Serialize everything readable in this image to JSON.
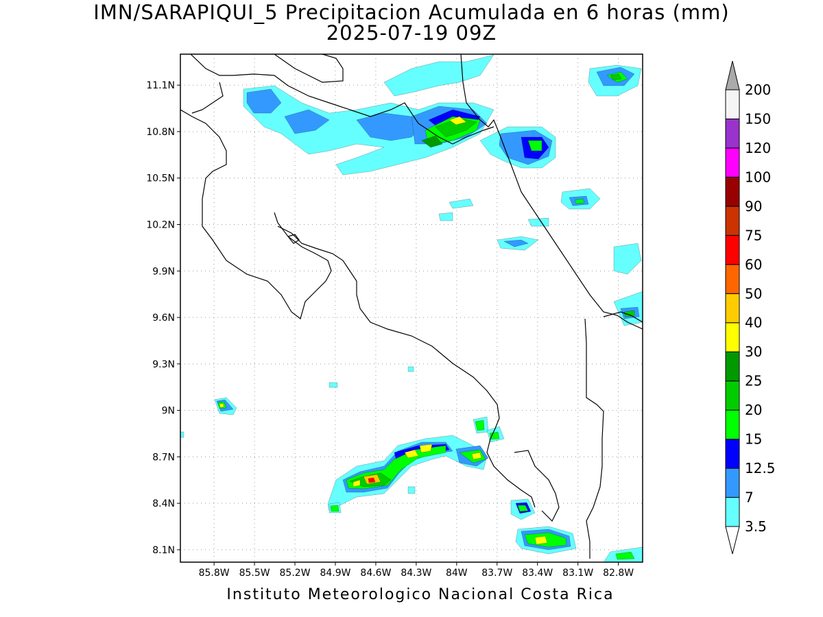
{
  "title": {
    "line1": "IMN/SARAPIQUI_5 Precipitacion Acumulada en 6 horas (mm)",
    "line2": "2025-07-19 09Z"
  },
  "footer": "Instituto Meteorologico Nacional Costa Rica",
  "map": {
    "lon_range": [
      -86.05,
      -82.62
    ],
    "lat_range": [
      8.02,
      11.3
    ],
    "lat_labels": [
      "11.1N",
      "10.8N",
      "10.5N",
      "10.2N",
      "9.9N",
      "9.6N",
      "9.3N",
      "9N",
      "8.7N",
      "8.4N",
      "8.1N"
    ],
    "lat_values": [
      11.1,
      10.8,
      10.5,
      10.2,
      9.9,
      9.6,
      9.3,
      9.0,
      8.7,
      8.4,
      8.1
    ],
    "lon_labels": [
      "85.8W",
      "85.5W",
      "85.2W",
      "84.9W",
      "84.6W",
      "84.3W",
      "84W",
      "83.7W",
      "83.4W",
      "83.1W",
      "82.8W"
    ],
    "lon_values": [
      -85.8,
      -85.5,
      -85.2,
      -84.9,
      -84.6,
      -84.3,
      -84.0,
      -83.7,
      -83.4,
      -83.1,
      -82.8
    ],
    "grid": "dotted"
  },
  "colorbar": {
    "unit": "mm",
    "levels": [
      "3.5",
      "7",
      "12.5",
      "15",
      "20",
      "25",
      "30",
      "40",
      "50",
      "60",
      "75",
      "90",
      "100",
      "120",
      "150",
      "200"
    ],
    "colors": [
      "#66ffff",
      "#3399ff",
      "#0000ff",
      "#00ff00",
      "#00cc00",
      "#009900",
      "#ffff00",
      "#ffcc00",
      "#ff6600",
      "#ff0000",
      "#cc3300",
      "#990000",
      "#ff00ff",
      "#9933cc",
      "#f5f5f5",
      "#aaaaaa"
    ]
  }
}
